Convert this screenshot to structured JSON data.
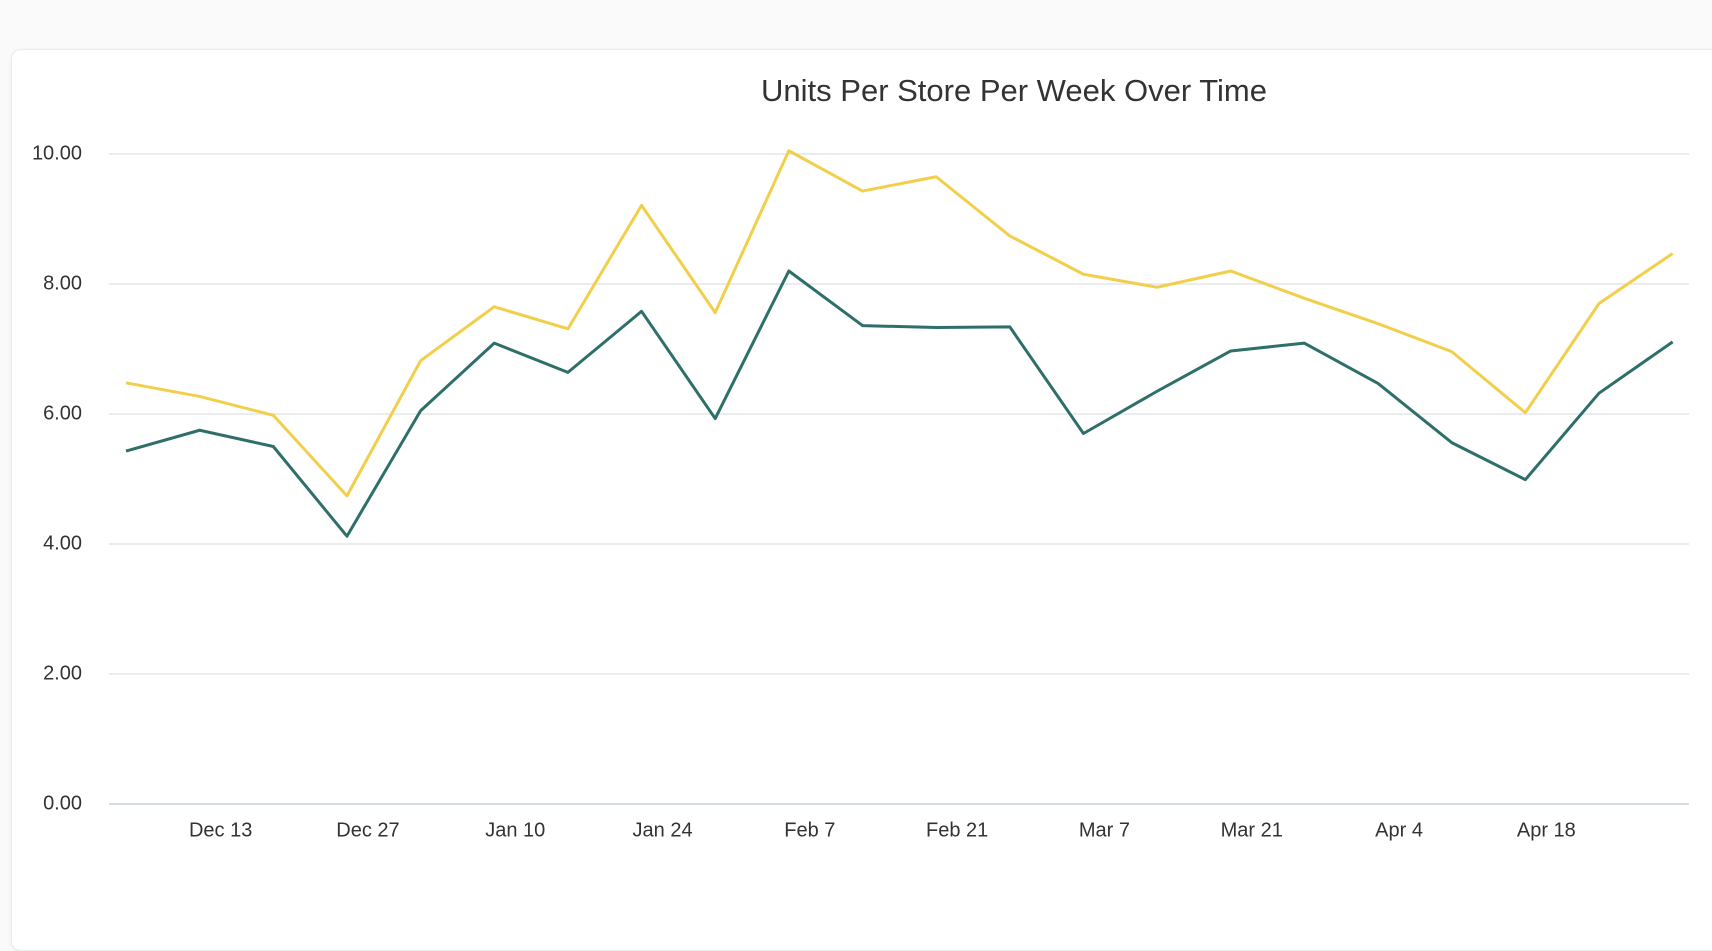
{
  "chart_data": {
    "type": "line",
    "title": "Units Per Store Per Week Over Time",
    "categories": [
      null,
      "Dec 13",
      null,
      "Dec 27",
      null,
      "Jan 10",
      null,
      "Jan 24",
      null,
      "Feb 7",
      null,
      "Feb 21",
      null,
      "Mar 7",
      null,
      "Mar 21",
      null,
      "Apr 4",
      null,
      "Apr 18",
      null,
      null
    ],
    "series": [
      {
        "color": "#f2cf4a",
        "values": [
          6.48,
          6.27,
          5.98,
          4.74,
          6.82,
          7.65,
          7.31,
          9.21,
          7.56,
          10.05,
          9.43,
          9.65,
          8.74,
          8.15,
          7.95,
          8.2,
          7.78,
          7.39,
          6.96,
          6.02,
          7.7,
          8.47
        ]
      },
      {
        "color": "#2f6f6a",
        "values": [
          5.43,
          5.75,
          5.5,
          4.12,
          6.05,
          7.09,
          6.64,
          7.58,
          5.93,
          8.2,
          7.36,
          7.33,
          7.34,
          5.7,
          6.35,
          6.97,
          7.09,
          6.47,
          5.56,
          4.99,
          6.32,
          7.11
        ]
      }
    ],
    "ylim": [
      0,
      10
    ],
    "yticks": [
      {
        "value": 0,
        "label": "0.00"
      },
      {
        "value": 2,
        "label": "2.00"
      },
      {
        "value": 4,
        "label": "4.00"
      },
      {
        "value": 6,
        "label": "6.00"
      },
      {
        "value": 8,
        "label": "8.00"
      },
      {
        "value": 10,
        "label": "10.00"
      }
    ],
    "grid": true
  }
}
